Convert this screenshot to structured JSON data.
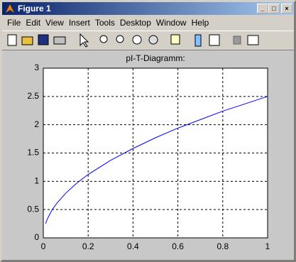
{
  "window": {
    "title": "Figure 1",
    "menu": [
      "File",
      "Edit",
      "View",
      "Insert",
      "Tools",
      "Desktop",
      "Window",
      "Help"
    ]
  },
  "chart_data": {
    "type": "line",
    "title": "pI-T-Diagramm:",
    "x": [
      0.01,
      0.02,
      0.04,
      0.06,
      0.1,
      0.15,
      0.2,
      0.3,
      0.4,
      0.5,
      0.6,
      0.7,
      0.8,
      0.9,
      1.0
    ],
    "values": [
      0.25,
      0.35,
      0.5,
      0.61,
      0.79,
      0.97,
      1.12,
      1.37,
      1.58,
      1.77,
      1.94,
      2.09,
      2.24,
      2.37,
      2.5
    ],
    "color": "#0000ff",
    "xlim": [
      0,
      1
    ],
    "xticks": [
      0,
      0.2,
      0.4,
      0.6,
      0.8,
      1
    ],
    "ylim": [
      0,
      3
    ],
    "yticks": [
      0,
      0.5,
      1,
      1.5,
      2,
      2.5,
      3
    ],
    "grid": true
  }
}
